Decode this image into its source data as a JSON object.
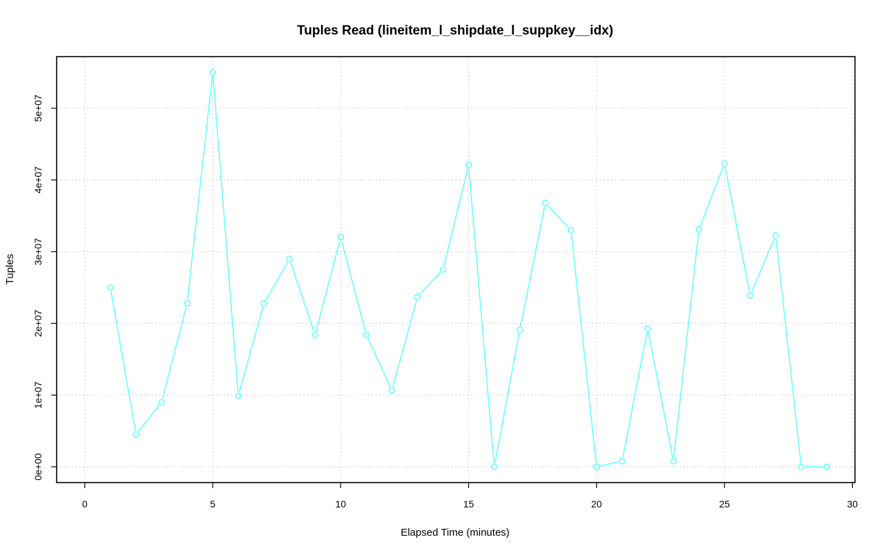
{
  "chart_data": {
    "type": "line",
    "title": "Tuples Read (lineitem_l_shipdate_l_suppkey__idx)",
    "xlabel": "Elapsed Time (minutes)",
    "ylabel": "Tuples",
    "xlim": [
      -1.1,
      30.1
    ],
    "ylim": [
      -2200000,
      57200000
    ],
    "x_ticks": [
      0,
      5,
      10,
      15,
      20,
      25,
      30
    ],
    "x_tick_labels": [
      "0",
      "5",
      "10",
      "15",
      "20",
      "25",
      "30"
    ],
    "y_ticks": [
      0,
      10000000,
      20000000,
      30000000,
      40000000,
      50000000
    ],
    "y_tick_labels": [
      "0e+00",
      "1e+07",
      "2e+07",
      "3e+07",
      "4e+07",
      "5e+07"
    ],
    "grid": true,
    "series": [
      {
        "color": "#66ffff",
        "x": [
          1,
          2,
          3,
          4,
          5,
          6,
          7,
          8,
          9,
          10,
          11,
          12,
          13,
          14,
          15,
          16,
          17,
          18,
          19,
          20,
          21,
          22,
          23,
          24,
          25,
          26,
          27,
          28,
          29
        ],
        "values": [
          25000000,
          4500000,
          9000000,
          22800000,
          55000000,
          9900000,
          22800000,
          29000000,
          18400000,
          32000000,
          18400000,
          10700000,
          23700000,
          27500000,
          42100000,
          0,
          19100000,
          36800000,
          33000000,
          0,
          800000,
          19300000,
          800000,
          33100000,
          42300000,
          23900000,
          32300000,
          0,
          0
        ]
      }
    ]
  }
}
